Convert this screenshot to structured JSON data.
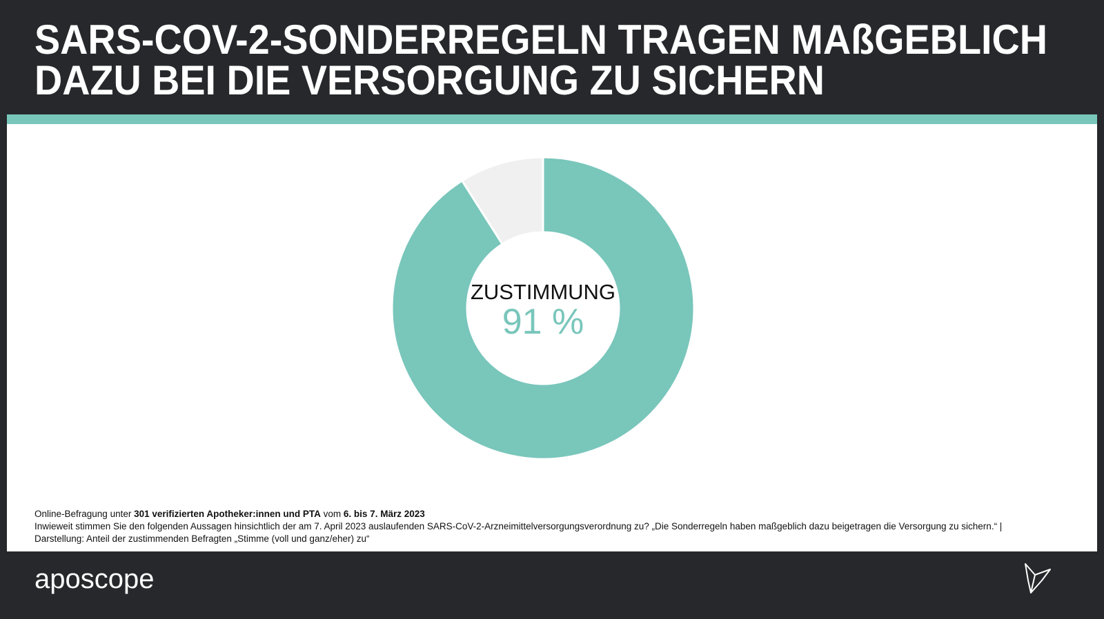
{
  "chart_data": {
    "type": "donut",
    "title": [
      "SARS-COV-2-SONDERREGELN TRAGEN MAßGEBLICH",
      "DAZU BEI DIE VERSORGUNG ZU SICHERN"
    ],
    "categories": [
      "ZUSTIMMUNG",
      null
    ],
    "values": [
      91,
      9
    ],
    "value_labels": [
      "91 %",
      null
    ],
    "colors": [
      "#79c6bb",
      "#f0f0f0"
    ],
    "notes": [
      [
        "Online-Befragung unter ",
        "301 verifizierten Apotheker:innen und PTA",
        " vom ",
        "6. bis 7. März 2023"
      ],
      [
        "Inwieweit stimmen Sie den folgenden Aussagen hinsichtlich der am 7. April 2023 auslaufenden SARS-CoV-2-Arzneimittelversorgungsverordnung zu? „Die Sonderregeln haben maßgeblich dazu beigetragen die Versorgung zu sichern.“ |"
      ],
      [
        "Darstellung: Anteil der zustimmenden Befragten „Stimme (voll und ganz/eher) zu“"
      ]
    ],
    "brand": "aposcope"
  }
}
